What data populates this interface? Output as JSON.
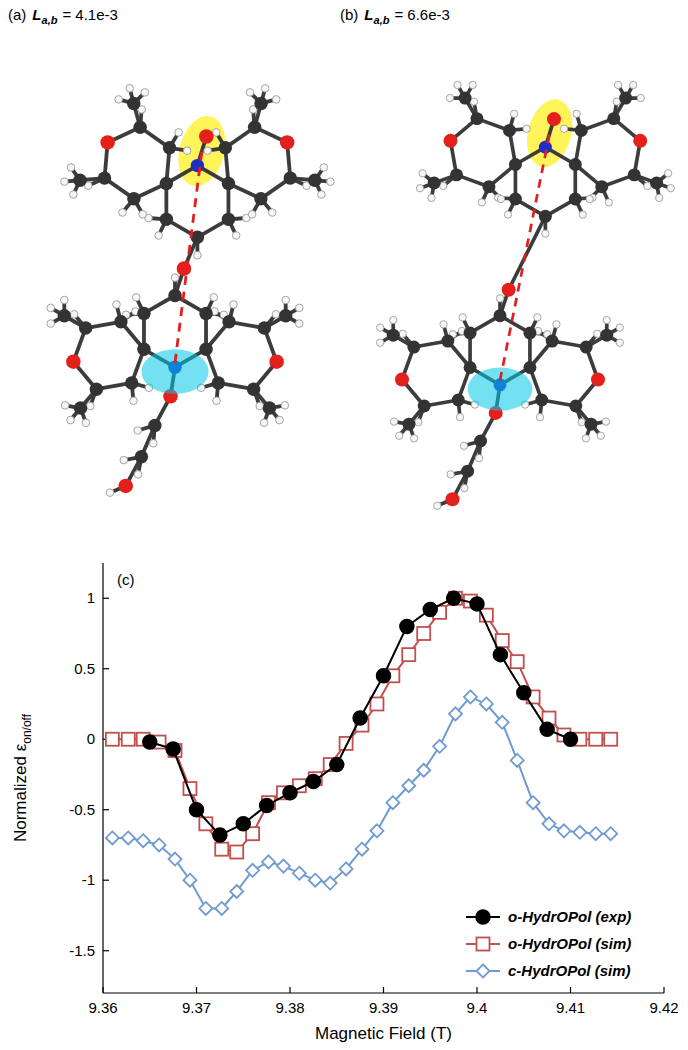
{
  "panels": [
    {
      "label": "(a)",
      "symbol": "L",
      "subscript": "a,b",
      "text": "= 4.1e-3"
    },
    {
      "label": "(b)",
      "symbol": "L",
      "subscript": "a,b",
      "text": "= 6.6e-3"
    }
  ],
  "chart_data": {
    "type": "line",
    "title": "(c)",
    "x_label": "Magnetic Field (T)",
    "y_label": "Normalized ε",
    "y_label_subscript": "on/off",
    "xlim": [
      9.36,
      9.42
    ],
    "xticks": [
      9.36,
      9.37,
      9.38,
      9.39,
      9.4,
      9.41,
      9.42
    ],
    "ylim": [
      -1.8,
      1.25
    ],
    "yticks": [
      -1.5,
      -1,
      -0.5,
      0,
      0.5,
      1
    ],
    "legend": "lower right",
    "series": [
      {
        "name": "o-HydrOPol (exp)",
        "color": "#000000",
        "marker": "circle",
        "x": [
          9.365,
          9.3675,
          9.37,
          9.3725,
          9.375,
          9.3775,
          9.38,
          9.3825,
          9.385,
          9.3875,
          9.39,
          9.3925,
          9.395,
          9.3975,
          9.4,
          9.4025,
          9.405,
          9.4075,
          9.41
        ],
        "values": [
          -0.02,
          -0.07,
          -0.5,
          -0.68,
          -0.6,
          -0.47,
          -0.38,
          -0.3,
          -0.18,
          0.15,
          0.45,
          0.8,
          0.92,
          1.0,
          0.96,
          0.6,
          0.33,
          0.07,
          0.0
        ]
      },
      {
        "name": "o-HydrOPol (sim)",
        "color": "#c0504d",
        "marker": "open-square",
        "x": [
          9.361,
          9.3627,
          9.3643,
          9.366,
          9.3677,
          9.3693,
          9.371,
          9.3727,
          9.3743,
          9.376,
          9.3777,
          9.3793,
          9.381,
          9.3827,
          9.3843,
          9.386,
          9.3877,
          9.3893,
          9.391,
          9.3927,
          9.3943,
          9.396,
          9.3977,
          9.3993,
          9.401,
          9.4027,
          9.4043,
          9.406,
          9.4077,
          9.4093,
          9.411,
          9.4127,
          9.4143
        ],
        "values": [
          0,
          0,
          0,
          -0.02,
          -0.08,
          -0.35,
          -0.6,
          -0.78,
          -0.8,
          -0.67,
          -0.45,
          -0.38,
          -0.33,
          -0.28,
          -0.18,
          -0.03,
          0.1,
          0.25,
          0.45,
          0.6,
          0.75,
          0.9,
          1.0,
          0.98,
          0.88,
          0.7,
          0.55,
          0.3,
          0.15,
          0.03,
          0,
          0,
          0
        ]
      },
      {
        "name": "c-HydrOPol (sim)",
        "color": "#6f9bd1",
        "marker": "open-diamond",
        "x": [
          9.361,
          9.3627,
          9.3643,
          9.366,
          9.3677,
          9.3693,
          9.371,
          9.3727,
          9.3743,
          9.376,
          9.3777,
          9.3793,
          9.381,
          9.3827,
          9.3843,
          9.386,
          9.3877,
          9.3893,
          9.391,
          9.3927,
          9.3943,
          9.396,
          9.3977,
          9.3993,
          9.401,
          9.4027,
          9.4043,
          9.406,
          9.4077,
          9.4093,
          9.411,
          9.4127,
          9.4143
        ],
        "values": [
          -0.7,
          -0.7,
          -0.72,
          -0.75,
          -0.85,
          -1.0,
          -1.2,
          -1.2,
          -1.08,
          -0.93,
          -0.87,
          -0.9,
          -0.95,
          -1.0,
          -1.02,
          -0.92,
          -0.78,
          -0.65,
          -0.45,
          -0.33,
          -0.22,
          -0.05,
          0.18,
          0.3,
          0.25,
          0.12,
          -0.15,
          -0.45,
          -0.6,
          -0.65,
          -0.66,
          -0.67,
          -0.67
        ]
      }
    ]
  }
}
